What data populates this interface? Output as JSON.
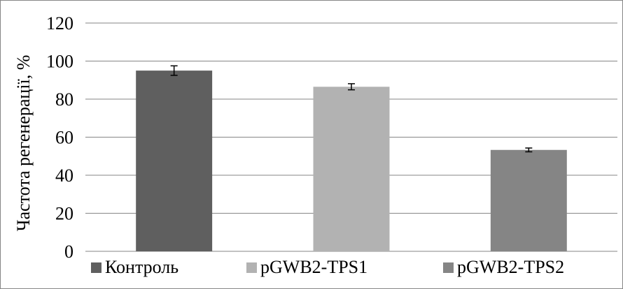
{
  "chart_data": {
    "type": "bar",
    "categories": [
      "Контроль",
      "pGWB2-TPS1",
      "pGWB2-TPS2"
    ],
    "values": [
      95,
      86.5,
      53.3
    ],
    "errors": [
      2.5,
      1.6,
      1.0
    ],
    "colors": [
      "#5f5f5f",
      "#b2b2b2",
      "#858585"
    ],
    "legend_labels": [
      "Контроль",
      "pGWB2-TPS1",
      "pGWB2-TPS2"
    ],
    "title": "",
    "xlabel": "",
    "ylabel": "Частота регенерації, %",
    "ylim": [
      0,
      120
    ],
    "yticks": [
      0,
      20,
      40,
      60,
      80,
      100,
      120
    ],
    "grid": true,
    "legend_position": "bottom"
  }
}
